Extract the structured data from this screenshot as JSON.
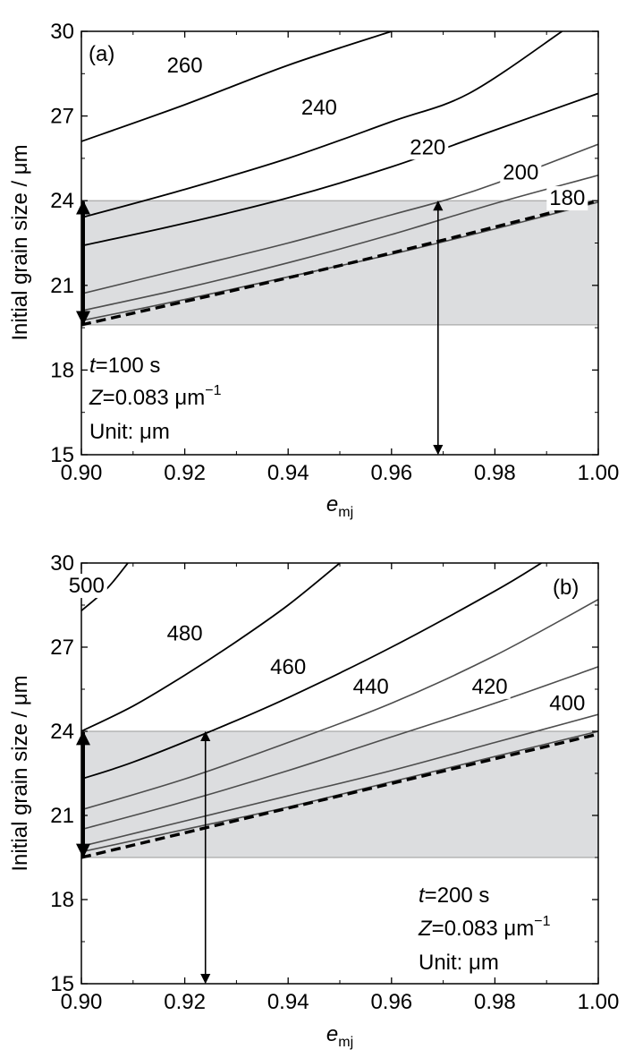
{
  "chart_data": [
    {
      "type": "line",
      "panel_label": "(a)",
      "xlabel": {
        "base": "e",
        "sub": "mj"
      },
      "ylabel": "Initial grain size / μm",
      "xlim": [
        0.9,
        1.0
      ],
      "ylim": [
        15,
        30
      ],
      "x_ticks": [
        "0.90",
        "0.92",
        "0.94",
        "0.96",
        "0.98",
        "1.00"
      ],
      "y_ticks": [
        "15",
        "18",
        "21",
        "24",
        "27",
        "30"
      ],
      "band": {
        "y_min": 19.6,
        "y_max": 24.0,
        "color": "#dcdddf"
      },
      "series": [
        {
          "name": "260",
          "color": "#000000",
          "points": [
            [
              0.9,
              26.1
            ],
            [
              0.92,
              27.4
            ],
            [
              0.94,
              28.8
            ],
            [
              0.96,
              30.0
            ]
          ],
          "label_at": [
            0.92,
            28.8
          ]
        },
        {
          "name": "240",
          "color": "#000000",
          "points": [
            [
              0.9,
              23.4
            ],
            [
              0.92,
              24.4
            ],
            [
              0.94,
              25.5
            ],
            [
              0.96,
              26.8
            ],
            [
              0.975,
              27.8
            ],
            [
              0.993,
              30.0
            ]
          ],
          "label_at": [
            0.946,
            27.3
          ]
        },
        {
          "name": "220",
          "color": "#000000",
          "points": [
            [
              0.9,
              22.4
            ],
            [
              0.92,
              23.2
            ],
            [
              0.94,
              24.1
            ],
            [
              0.96,
              25.2
            ],
            [
              0.98,
              26.5
            ],
            [
              1.0,
              27.8
            ]
          ],
          "label_at": [
            0.967,
            25.9
          ]
        },
        {
          "name": "200",
          "color": "#4d4d4d",
          "points": [
            [
              0.9,
              20.7
            ],
            [
              0.92,
              21.6
            ],
            [
              0.94,
              22.5
            ],
            [
              0.96,
              23.5
            ],
            [
              0.97,
              24.0
            ],
            [
              0.98,
              24.6
            ],
            [
              1.0,
              26.0
            ]
          ],
          "label_at": [
            0.985,
            25.0
          ]
        },
        {
          "name": "180",
          "color": "#4d4d4d",
          "points": [
            [
              0.9,
              20.1
            ],
            [
              0.92,
              20.9
            ],
            [
              0.94,
              21.8
            ],
            [
              0.96,
              22.8
            ],
            [
              0.98,
              23.9
            ],
            [
              1.0,
              24.9
            ]
          ],
          "label_at": [
            0.994,
            24.1
          ]
        },
        {
          "name": "",
          "color": "#4d4d4d",
          "points": [
            [
              0.9,
              19.75
            ],
            [
              0.92,
              20.5
            ],
            [
              0.94,
              21.3
            ],
            [
              0.96,
              22.1
            ],
            [
              0.98,
              23.0
            ],
            [
              1.0,
              23.95
            ]
          ]
        },
        {
          "name": "",
          "color": "#000000",
          "dashed": true,
          "points": [
            [
              0.9,
              19.6
            ],
            [
              0.95,
              21.7
            ],
            [
              1.0,
              24.0
            ]
          ]
        }
      ],
      "arrows": [
        {
          "kind": "thick-double",
          "x": 0.9,
          "y1": 19.6,
          "y2": 24.0
        },
        {
          "kind": "thin-double",
          "x": 0.969,
          "y1": 15.0,
          "y2": 24.0
        }
      ],
      "annotations": {
        "t_var": "t",
        "t_rest": "=100 s",
        "z_var": "Z",
        "z_rest": "=0.083 μm",
        "z_sup": "−1",
        "unit": "Unit: μm"
      }
    },
    {
      "type": "line",
      "panel_label": "(b)",
      "xlabel": {
        "base": "e",
        "sub": "mj"
      },
      "ylabel": "Initial grain size / μm",
      "xlim": [
        0.9,
        1.0
      ],
      "ylim": [
        15,
        30
      ],
      "x_ticks": [
        "0.90",
        "0.92",
        "0.94",
        "0.96",
        "0.98",
        "1.00"
      ],
      "y_ticks": [
        "15",
        "18",
        "21",
        "24",
        "27",
        "30"
      ],
      "band": {
        "y_min": 19.5,
        "y_max": 24.0,
        "color": "#dcdddf"
      },
      "series": [
        {
          "name": "500",
          "color": "#000000",
          "points": [
            [
              0.9,
              28.3
            ],
            [
              0.905,
              29.1
            ],
            [
              0.909,
              30.0
            ]
          ],
          "label_at": [
            0.901,
            29.2
          ]
        },
        {
          "name": "480",
          "color": "#000000",
          "points": [
            [
              0.9,
              24.0
            ],
            [
              0.91,
              24.9
            ],
            [
              0.92,
              26.0
            ],
            [
              0.93,
              27.2
            ],
            [
              0.94,
              28.5
            ],
            [
              0.95,
              30.0
            ]
          ],
          "label_at": [
            0.92,
            27.5
          ]
        },
        {
          "name": "460",
          "color": "#000000",
          "points": [
            [
              0.9,
              22.3
            ],
            [
              0.91,
              22.9
            ],
            [
              0.925,
              24.0
            ],
            [
              0.94,
              25.2
            ],
            [
              0.96,
              27.0
            ],
            [
              0.98,
              29.0
            ],
            [
              0.989,
              30.0
            ]
          ],
          "label_at": [
            0.94,
            26.3
          ]
        },
        {
          "name": "440",
          "color": "#4d4d4d",
          "points": [
            [
              0.9,
              21.2
            ],
            [
              0.92,
              22.3
            ],
            [
              0.94,
              23.6
            ],
            [
              0.96,
              25.0
            ],
            [
              0.98,
              26.7
            ],
            [
              1.0,
              28.7
            ]
          ],
          "label_at": [
            0.956,
            25.6
          ]
        },
        {
          "name": "420",
          "color": "#4d4d4d",
          "points": [
            [
              0.9,
              20.5
            ],
            [
              0.92,
              21.5
            ],
            [
              0.94,
              22.6
            ],
            [
              0.96,
              23.8
            ],
            [
              0.98,
              25.0
            ],
            [
              1.0,
              26.3
            ]
          ],
          "label_at": [
            0.979,
            25.6
          ]
        },
        {
          "name": "400",
          "color": "#4d4d4d",
          "points": [
            [
              0.9,
              19.9
            ],
            [
              0.92,
              20.8
            ],
            [
              0.94,
              21.7
            ],
            [
              0.96,
              22.6
            ],
            [
              0.98,
              23.6
            ],
            [
              1.0,
              24.6
            ]
          ],
          "label_at": [
            0.994,
            25.0
          ]
        },
        {
          "name": "",
          "color": "#4d4d4d",
          "points": [
            [
              0.9,
              19.7
            ],
            [
              0.92,
              20.5
            ],
            [
              0.94,
              21.3
            ],
            [
              0.96,
              22.2
            ],
            [
              0.98,
              23.1
            ],
            [
              1.0,
              24.0
            ]
          ]
        },
        {
          "name": "",
          "color": "#000000",
          "dashed": true,
          "points": [
            [
              0.9,
              19.5
            ],
            [
              0.95,
              21.7
            ],
            [
              1.0,
              23.9
            ]
          ]
        }
      ],
      "arrows": [
        {
          "kind": "thick-double",
          "x": 0.9,
          "y1": 19.5,
          "y2": 24.0
        },
        {
          "kind": "thin-double",
          "x": 0.924,
          "y1": 15.0,
          "y2": 24.0
        }
      ],
      "annotations": {
        "t_var": "t",
        "t_rest": "=200 s",
        "z_var": "Z",
        "z_rest": "=0.083 μm",
        "z_sup": "−1",
        "unit": "Unit: μm"
      }
    }
  ]
}
